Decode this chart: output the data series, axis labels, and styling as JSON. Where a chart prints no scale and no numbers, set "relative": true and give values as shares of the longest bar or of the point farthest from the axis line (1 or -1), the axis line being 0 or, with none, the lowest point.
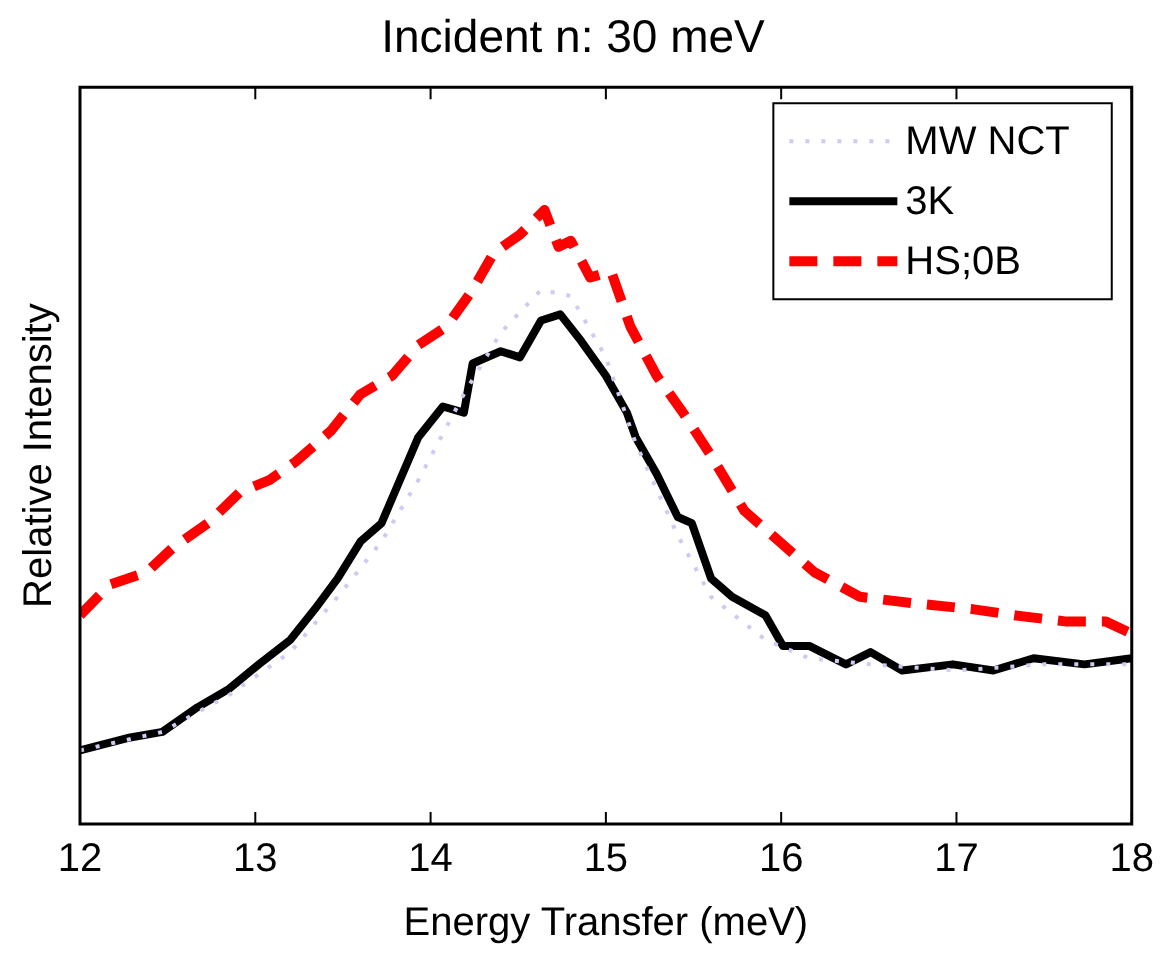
{
  "chart_data": {
    "type": "line",
    "title": "Incident n: 30 meV",
    "xlabel": "Energy Transfer (meV)",
    "ylabel": "Relative Intensity",
    "relative": true,
    "xlim": [
      12,
      18
    ],
    "xticks": [
      12,
      13,
      14,
      15,
      16,
      17,
      18
    ],
    "grid": false,
    "legend": "top right",
    "series": [
      {
        "name": "MW NCT",
        "color": "#ccccf2",
        "line_style": "dotted",
        "x": [
          12.0,
          12.47,
          12.85,
          13.2,
          13.47,
          13.72,
          13.93,
          14.19,
          14.4,
          14.63,
          14.8,
          15.0,
          15.17,
          15.41,
          15.6,
          15.91,
          16.16,
          16.51,
          17.0,
          17.5,
          18.0
        ],
        "values": [
          0.12,
          0.15,
          0.21,
          0.28,
          0.37,
          0.46,
          0.56,
          0.7,
          0.8,
          0.87,
          0.86,
          0.76,
          0.62,
          0.47,
          0.37,
          0.3,
          0.27,
          0.26,
          0.25,
          0.26,
          0.26
        ]
      },
      {
        "name": "3K",
        "color": "#000000",
        "line_style": "solid",
        "x": [
          12.0,
          12.27,
          12.47,
          12.67,
          12.85,
          13.02,
          13.2,
          13.34,
          13.47,
          13.6,
          13.72,
          13.81,
          13.93,
          14.07,
          14.19,
          14.24,
          14.4,
          14.51,
          14.63,
          14.74,
          14.85,
          15.0,
          15.12,
          15.17,
          15.29,
          15.41,
          15.49,
          15.6,
          15.72,
          15.91,
          16.01,
          16.16,
          16.37,
          16.51,
          16.69,
          16.98,
          17.21,
          17.44,
          17.73,
          18.0
        ],
        "values": [
          0.12,
          0.14,
          0.15,
          0.19,
          0.22,
          0.26,
          0.3,
          0.35,
          0.4,
          0.46,
          0.49,
          0.55,
          0.63,
          0.68,
          0.67,
          0.75,
          0.77,
          0.76,
          0.82,
          0.83,
          0.79,
          0.73,
          0.67,
          0.63,
          0.57,
          0.5,
          0.49,
          0.4,
          0.37,
          0.34,
          0.29,
          0.29,
          0.26,
          0.28,
          0.25,
          0.26,
          0.25,
          0.27,
          0.26,
          0.27
        ]
      },
      {
        "name": "HS;0B",
        "color": "#ff0000",
        "line_style": "dashed",
        "x": [
          12.0,
          12.17,
          12.38,
          12.53,
          12.73,
          12.91,
          13.08,
          13.23,
          13.43,
          13.6,
          13.78,
          13.93,
          14.09,
          14.24,
          14.36,
          14.51,
          14.65,
          14.73,
          14.8,
          14.91,
          15.03,
          15.14,
          15.29,
          15.44,
          15.6,
          15.79,
          15.99,
          16.19,
          16.45,
          16.74,
          17.09,
          17.33,
          17.62,
          17.85,
          18.0
        ],
        "values": [
          0.34,
          0.39,
          0.41,
          0.45,
          0.49,
          0.54,
          0.56,
          0.59,
          0.64,
          0.7,
          0.73,
          0.78,
          0.81,
          0.87,
          0.93,
          0.96,
          1.0,
          0.94,
          0.95,
          0.89,
          0.9,
          0.81,
          0.73,
          0.67,
          0.6,
          0.51,
          0.46,
          0.41,
          0.37,
          0.36,
          0.35,
          0.34,
          0.33,
          0.33,
          0.31
        ]
      }
    ]
  }
}
